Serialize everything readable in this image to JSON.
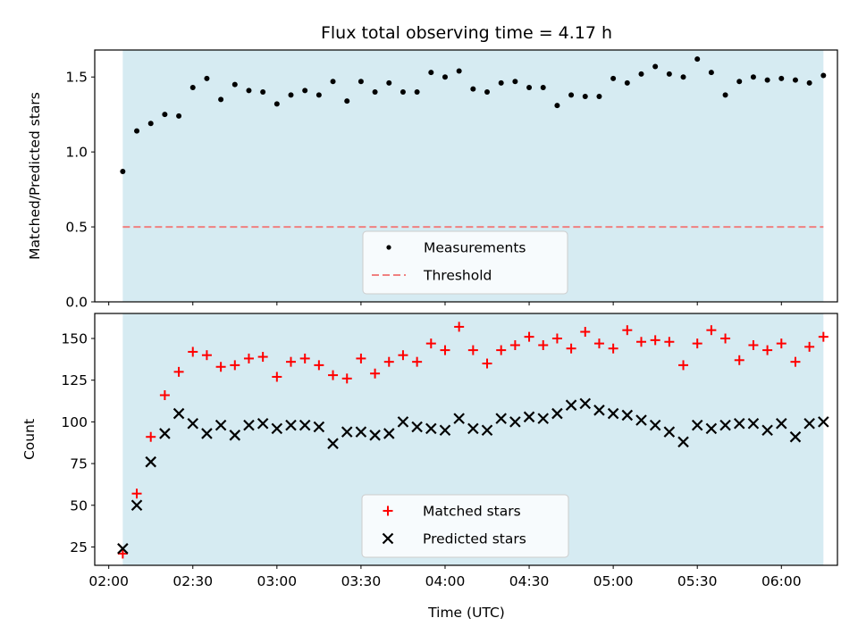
{
  "title": "Flux total observing time = 4.17 h",
  "xlabel": "Time (UTC)",
  "x_ticks": [
    "02:00",
    "02:30",
    "03:00",
    "03:30",
    "04:00",
    "04:30",
    "05:00",
    "05:30",
    "06:00"
  ],
  "colors": {
    "shade": "#add8e6",
    "threshold": "#f08080",
    "matched": "#ff0000",
    "predicted": "#000000",
    "measurements": "#000000"
  },
  "chart_data": [
    {
      "type": "scatter",
      "ylabel": "Matched/Predicted stars",
      "ylim": [
        0,
        1.68
      ],
      "y_ticks": [
        "0.0",
        "0.5",
        "1.0",
        "1.5"
      ],
      "shaded_range": [
        "02:05",
        "06:15"
      ],
      "threshold": 0.5,
      "legend": {
        "placement": "lower center",
        "entries": [
          "Measurements",
          "Threshold"
        ]
      },
      "series": [
        {
          "name": "Measurements",
          "x": [
            "02:05",
            "02:10",
            "02:15",
            "02:20",
            "02:25",
            "02:30",
            "02:35",
            "02:40",
            "02:45",
            "02:50",
            "02:55",
            "03:00",
            "03:05",
            "03:10",
            "03:15",
            "03:20",
            "03:25",
            "03:30",
            "03:35",
            "03:40",
            "03:45",
            "03:50",
            "03:55",
            "04:00",
            "04:05",
            "04:10",
            "04:15",
            "04:20",
            "04:25",
            "04:30",
            "04:35",
            "04:40",
            "04:45",
            "04:50",
            "04:55",
            "05:00",
            "05:05",
            "05:10",
            "05:15",
            "05:20",
            "05:25",
            "05:30",
            "05:35",
            "05:40",
            "05:45",
            "05:50",
            "05:55",
            "06:00",
            "06:05",
            "06:10",
            "06:15"
          ],
          "y": [
            0.87,
            1.14,
            1.19,
            1.25,
            1.24,
            1.43,
            1.49,
            1.35,
            1.45,
            1.41,
            1.4,
            1.32,
            1.38,
            1.41,
            1.38,
            1.47,
            1.34,
            1.47,
            1.4,
            1.46,
            1.4,
            1.4,
            1.53,
            1.5,
            1.54,
            1.42,
            1.4,
            1.46,
            1.47,
            1.43,
            1.43,
            1.31,
            1.38,
            1.37,
            1.37,
            1.49,
            1.46,
            1.52,
            1.57,
            1.52,
            1.5,
            1.62,
            1.53,
            1.38,
            1.47,
            1.5,
            1.48,
            1.49,
            1.48,
            1.46,
            1.51
          ]
        }
      ]
    },
    {
      "type": "scatter",
      "ylabel": "Count",
      "ylim": [
        14,
        165
      ],
      "y_ticks": [
        "25",
        "50",
        "75",
        "100",
        "125",
        "150"
      ],
      "shaded_range": [
        "02:05",
        "06:15"
      ],
      "legend": {
        "placement": "lower center",
        "entries": [
          "Matched stars",
          "Predicted stars"
        ]
      },
      "series": [
        {
          "name": "Matched stars",
          "x": [
            "02:05",
            "02:10",
            "02:15",
            "02:20",
            "02:25",
            "02:30",
            "02:35",
            "02:40",
            "02:45",
            "02:50",
            "02:55",
            "03:00",
            "03:05",
            "03:10",
            "03:15",
            "03:20",
            "03:25",
            "03:30",
            "03:35",
            "03:40",
            "03:45",
            "03:50",
            "03:55",
            "04:00",
            "04:05",
            "04:10",
            "04:15",
            "04:20",
            "04:25",
            "04:30",
            "04:35",
            "04:40",
            "04:45",
            "04:50",
            "04:55",
            "05:00",
            "05:05",
            "05:10",
            "05:15",
            "05:20",
            "05:25",
            "05:30",
            "05:35",
            "05:40",
            "05:45",
            "05:50",
            "05:55",
            "06:00",
            "06:05",
            "06:10",
            "06:15"
          ],
          "y": [
            21,
            57,
            91,
            116,
            130,
            142,
            140,
            133,
            134,
            138,
            139,
            127,
            136,
            138,
            134,
            128,
            126,
            138,
            129,
            136,
            140,
            136,
            147,
            143,
            157,
            143,
            135,
            143,
            146,
            151,
            146,
            150,
            144,
            154,
            147,
            144,
            155,
            148,
            149,
            148,
            134,
            147,
            155,
            150,
            137,
            146,
            143,
            147,
            136,
            145,
            151
          ]
        },
        {
          "name": "Predicted stars",
          "x": [
            "02:05",
            "02:10",
            "02:15",
            "02:20",
            "02:25",
            "02:30",
            "02:35",
            "02:40",
            "02:45",
            "02:50",
            "02:55",
            "03:00",
            "03:05",
            "03:10",
            "03:15",
            "03:20",
            "03:25",
            "03:30",
            "03:35",
            "03:40",
            "03:45",
            "03:50",
            "03:55",
            "04:00",
            "04:05",
            "04:10",
            "04:15",
            "04:20",
            "04:25",
            "04:30",
            "04:35",
            "04:40",
            "04:45",
            "04:50",
            "04:55",
            "05:00",
            "05:05",
            "05:10",
            "05:15",
            "05:20",
            "05:25",
            "05:30",
            "05:35",
            "05:40",
            "05:45",
            "05:50",
            "05:55",
            "06:00",
            "06:05",
            "06:10",
            "06:15"
          ],
          "y": [
            24,
            50,
            76,
            93,
            105,
            99,
            93,
            98,
            92,
            98,
            99,
            96,
            98,
            98,
            97,
            87,
            94,
            94,
            92,
            93,
            100,
            97,
            96,
            95,
            102,
            96,
            95,
            102,
            100,
            103,
            102,
            105,
            110,
            111,
            107,
            105,
            104,
            101,
            98,
            94,
            88,
            98,
            96,
            98,
            99,
            99,
            95,
            99,
            91,
            99,
            100
          ]
        }
      ]
    }
  ]
}
